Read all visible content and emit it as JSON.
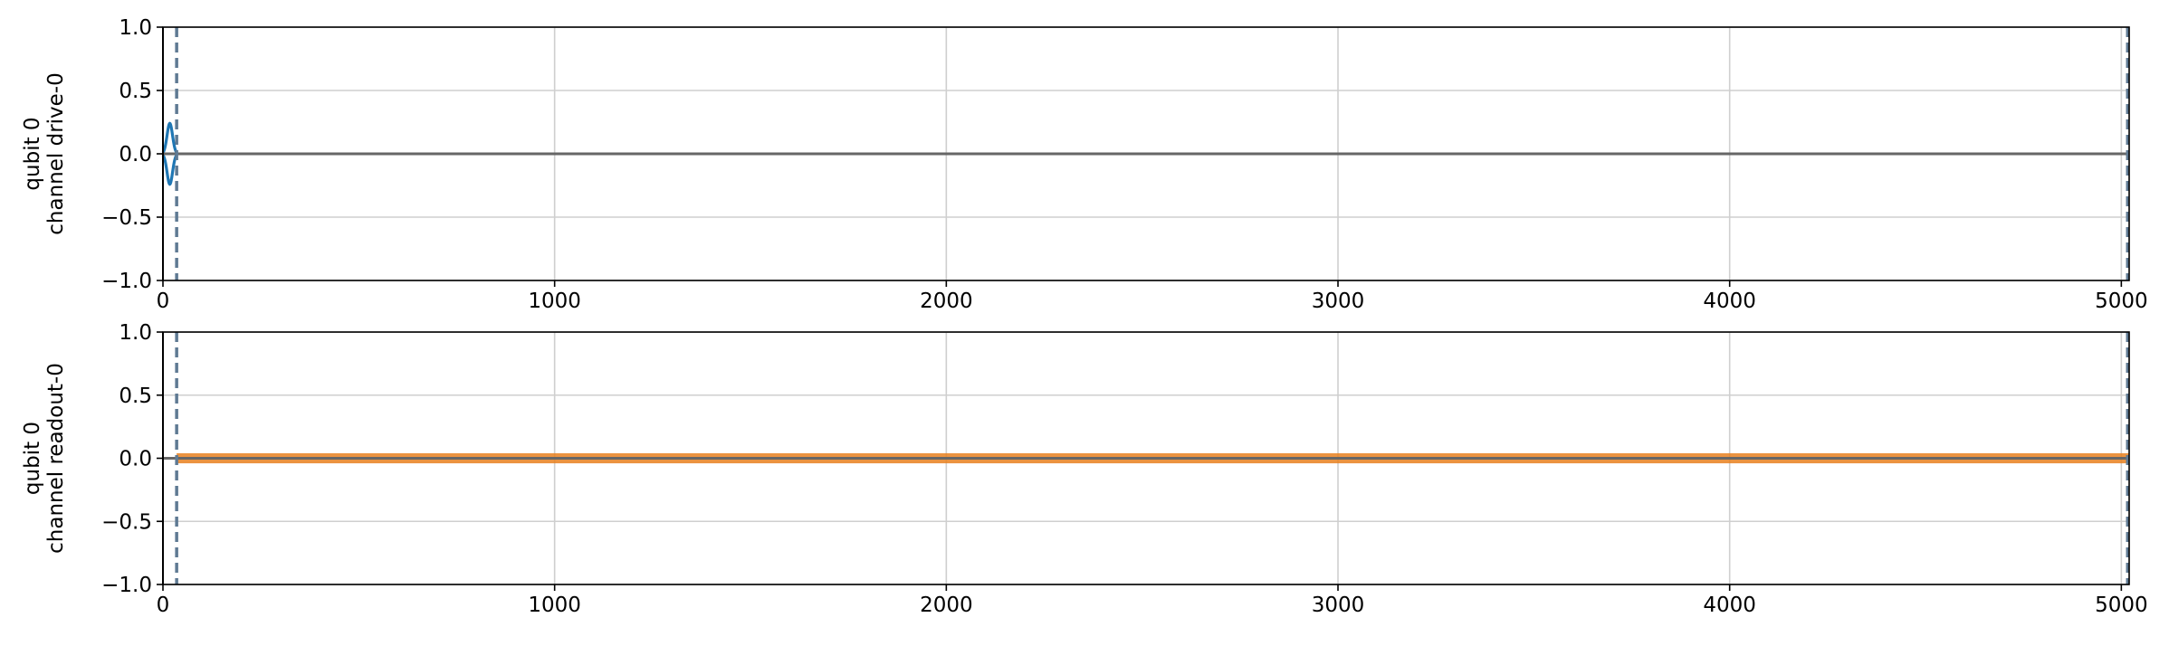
{
  "chart_data": [
    {
      "type": "line",
      "ylabel_lines": [
        "qubit 0",
        "channel drive-0"
      ],
      "xlim": [
        0,
        5020
      ],
      "ylim": [
        -1.0,
        1.0
      ],
      "xticks": [
        0,
        1000,
        2000,
        3000,
        4000,
        5000
      ],
      "yticks": [
        -1.0,
        -0.5,
        0.0,
        0.5,
        1.0
      ],
      "ytick_labels": [
        "−1.0",
        "−0.5",
        "0.0",
        "0.5",
        "1.0"
      ],
      "grid": true,
      "markers": [
        {
          "x": 0,
          "style": "solid",
          "color": "#000000"
        },
        {
          "x": 35,
          "style": "dashed",
          "color": "#5f7a93"
        },
        {
          "x": 5016,
          "style": "dashed",
          "color": "#5f7a93"
        }
      ],
      "series": [
        {
          "color": "#1f77b4",
          "pulse": {
            "start": 0,
            "end": 35,
            "amplitude": 0.24,
            "form": "gaussian"
          }
        },
        {
          "color": "#1f77b4",
          "pulse": {
            "start": 0,
            "end": 35,
            "amplitude": -0.24,
            "form": "gaussian"
          }
        },
        {
          "color": "#666666",
          "segment": {
            "x": [
              0,
              5020
            ],
            "y": 0.0
          }
        }
      ]
    },
    {
      "type": "line",
      "ylabel_lines": [
        "qubit 0",
        "channel readout-0"
      ],
      "xlim": [
        0,
        5020
      ],
      "ylim": [
        -1.0,
        1.0
      ],
      "xticks": [
        0,
        1000,
        2000,
        3000,
        4000,
        5000
      ],
      "yticks": [
        -1.0,
        -0.5,
        0.0,
        0.5,
        1.0
      ],
      "ytick_labels": [
        "−1.0",
        "−0.5",
        "0.0",
        "0.5",
        "1.0"
      ],
      "grid": true,
      "markers": [
        {
          "x": 0,
          "style": "solid",
          "color": "#000000"
        },
        {
          "x": 35,
          "style": "dashed",
          "color": "#5f7a93"
        },
        {
          "x": 5016,
          "style": "dashed",
          "color": "#5f7a93"
        }
      ],
      "series": [
        {
          "color": "#e8801f",
          "band": {
            "x": [
              35,
              5020
            ],
            "half_width": 0.04
          }
        },
        {
          "color": "#666666",
          "segment": {
            "x": [
              0,
              5020
            ],
            "y": 0.0
          }
        }
      ]
    }
  ]
}
